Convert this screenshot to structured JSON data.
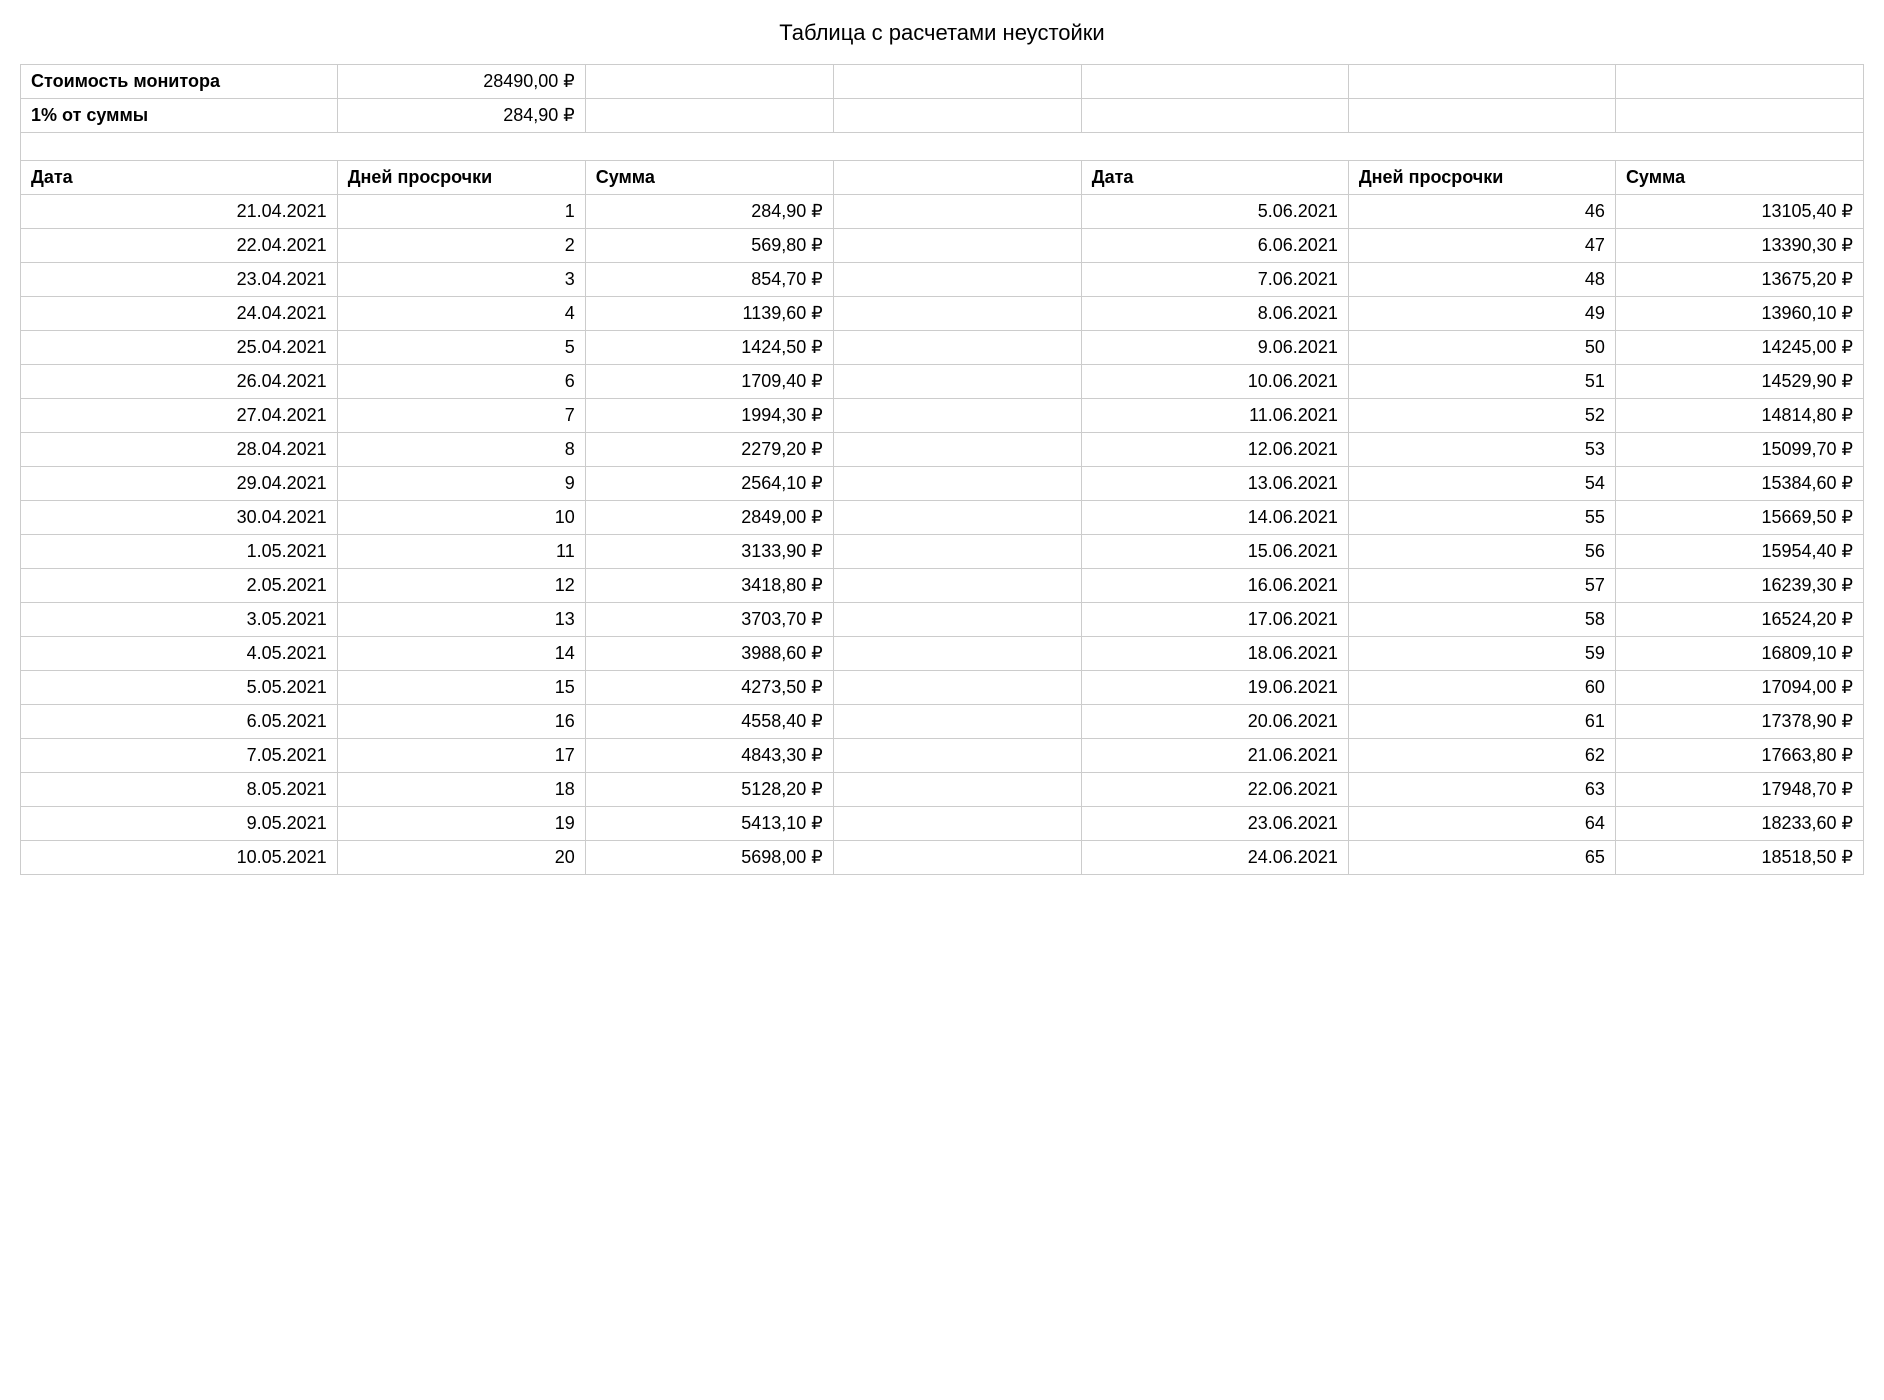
{
  "title": "Таблица с расчетами неустойки",
  "meta": {
    "row1_label": "Стоимость монитора",
    "row1_value": "28490,00 ₽",
    "row2_label": "1% от суммы",
    "row2_value": "284,90 ₽"
  },
  "columns": {
    "date": "Дата",
    "days": "Дней просрочки",
    "sum": "Сумма"
  },
  "left_rows": [
    {
      "date": "21.04.2021",
      "days": "1",
      "sum": "284,90 ₽"
    },
    {
      "date": "22.04.2021",
      "days": "2",
      "sum": "569,80 ₽"
    },
    {
      "date": "23.04.2021",
      "days": "3",
      "sum": "854,70 ₽"
    },
    {
      "date": "24.04.2021",
      "days": "4",
      "sum": "1139,60 ₽"
    },
    {
      "date": "25.04.2021",
      "days": "5",
      "sum": "1424,50 ₽"
    },
    {
      "date": "26.04.2021",
      "days": "6",
      "sum": "1709,40 ₽"
    },
    {
      "date": "27.04.2021",
      "days": "7",
      "sum": "1994,30 ₽"
    },
    {
      "date": "28.04.2021",
      "days": "8",
      "sum": "2279,20 ₽"
    },
    {
      "date": "29.04.2021",
      "days": "9",
      "sum": "2564,10 ₽"
    },
    {
      "date": "30.04.2021",
      "days": "10",
      "sum": "2849,00 ₽"
    },
    {
      "date": "1.05.2021",
      "days": "11",
      "sum": "3133,90 ₽"
    },
    {
      "date": "2.05.2021",
      "days": "12",
      "sum": "3418,80 ₽"
    },
    {
      "date": "3.05.2021",
      "days": "13",
      "sum": "3703,70 ₽"
    },
    {
      "date": "4.05.2021",
      "days": "14",
      "sum": "3988,60 ₽"
    },
    {
      "date": "5.05.2021",
      "days": "15",
      "sum": "4273,50 ₽"
    },
    {
      "date": "6.05.2021",
      "days": "16",
      "sum": "4558,40 ₽"
    },
    {
      "date": "7.05.2021",
      "days": "17",
      "sum": "4843,30 ₽"
    },
    {
      "date": "8.05.2021",
      "days": "18",
      "sum": "5128,20 ₽"
    },
    {
      "date": "9.05.2021",
      "days": "19",
      "sum": "5413,10 ₽"
    },
    {
      "date": "10.05.2021",
      "days": "20",
      "sum": "5698,00 ₽"
    }
  ],
  "right_rows": [
    {
      "date": "5.06.2021",
      "days": "46",
      "sum": "13105,40 ₽"
    },
    {
      "date": "6.06.2021",
      "days": "47",
      "sum": "13390,30 ₽"
    },
    {
      "date": "7.06.2021",
      "days": "48",
      "sum": "13675,20 ₽"
    },
    {
      "date": "8.06.2021",
      "days": "49",
      "sum": "13960,10 ₽"
    },
    {
      "date": "9.06.2021",
      "days": "50",
      "sum": "14245,00 ₽"
    },
    {
      "date": "10.06.2021",
      "days": "51",
      "sum": "14529,90 ₽"
    },
    {
      "date": "11.06.2021",
      "days": "52",
      "sum": "14814,80 ₽"
    },
    {
      "date": "12.06.2021",
      "days": "53",
      "sum": "15099,70 ₽"
    },
    {
      "date": "13.06.2021",
      "days": "54",
      "sum": "15384,60 ₽"
    },
    {
      "date": "14.06.2021",
      "days": "55",
      "sum": "15669,50 ₽"
    },
    {
      "date": "15.06.2021",
      "days": "56",
      "sum": "15954,40 ₽"
    },
    {
      "date": "16.06.2021",
      "days": "57",
      "sum": "16239,30 ₽"
    },
    {
      "date": "17.06.2021",
      "days": "58",
      "sum": "16524,20 ₽"
    },
    {
      "date": "18.06.2021",
      "days": "59",
      "sum": "16809,10 ₽"
    },
    {
      "date": "19.06.2021",
      "days": "60",
      "sum": "17094,00 ₽"
    },
    {
      "date": "20.06.2021",
      "days": "61",
      "sum": "17378,90 ₽"
    },
    {
      "date": "21.06.2021",
      "days": "62",
      "sum": "17663,80 ₽"
    },
    {
      "date": "22.06.2021",
      "days": "63",
      "sum": "17948,70 ₽"
    },
    {
      "date": "23.06.2021",
      "days": "64",
      "sum": "18233,60 ₽"
    },
    {
      "date": "24.06.2021",
      "days": "65",
      "sum": "18518,50 ₽"
    }
  ],
  "style": {
    "border_color": "#cccccc",
    "background_color": "#ffffff",
    "text_color": "#000000",
    "font_size_body": 18,
    "font_size_title": 22
  }
}
